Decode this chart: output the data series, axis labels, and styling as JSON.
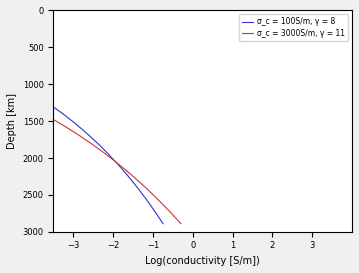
{
  "title": "",
  "xlabel": "Log(conductivity [S/m])",
  "ylabel": "Depth [km]",
  "R_km": 6371,
  "mantle_bottom_km": 2891,
  "models": [
    {
      "sigma_c": 100,
      "gamma": 8,
      "color": "#3333cc",
      "label": "σ_c = 100S/m, γ = 8"
    },
    {
      "sigma_c": 3000,
      "gamma": 11,
      "color": "#cc3333",
      "label": "σ_c = 3000S/m, γ = 11"
    }
  ],
  "xlim": [
    -3.5,
    4.0
  ],
  "ylim": [
    3000,
    0
  ],
  "xticks": [
    -3,
    -2,
    -1,
    0,
    1,
    2,
    3
  ],
  "yticks": [
    0,
    500,
    1000,
    1500,
    2000,
    2500,
    3000
  ],
  "background_color": "#f0f0f0",
  "axes_background": "#ffffff"
}
